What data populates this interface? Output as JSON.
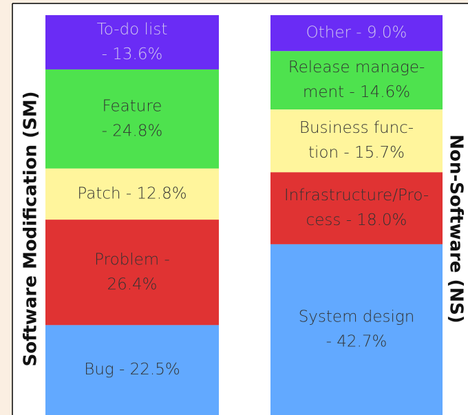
{
  "chart_data": [
    {
      "type": "stacked_column",
      "title": "Software Modification (SM)",
      "title_side": "left",
      "values": [
        13.6,
        24.8,
        12.8,
        26.4,
        22.5
      ],
      "value_labels": [
        [
          "To-do list",
          "- 13.6%"
        ],
        [
          "Feature",
          "- 24.8%"
        ],
        [
          "Patch - 12.8%"
        ],
        [
          "Problem -",
          "26.4%"
        ],
        [
          "Bug - 22.5%"
        ]
      ],
      "colors": [
        "#6a2cf5",
        "#4ee24e",
        "#fff59c",
        "#e03333",
        "#62a9ff"
      ]
    },
    {
      "type": "stacked_column",
      "title": "Non-Software (NS)",
      "title_side": "right",
      "values": [
        9.0,
        14.6,
        15.7,
        18.0,
        42.7
      ],
      "value_labels": [
        [
          "Other - 9.0%"
        ],
        [
          "Release manage-",
          "ment - 14.6%"
        ],
        [
          "Business func-",
          "tion - 15.7%"
        ],
        [
          "Infrastructure/Pro-",
          "cess - 18.0%"
        ],
        [
          "System design",
          "- 42.7%"
        ]
      ],
      "colors": [
        "#6a2cf5",
        "#4ee24e",
        "#fff59c",
        "#e03333",
        "#62a9ff"
      ]
    }
  ]
}
